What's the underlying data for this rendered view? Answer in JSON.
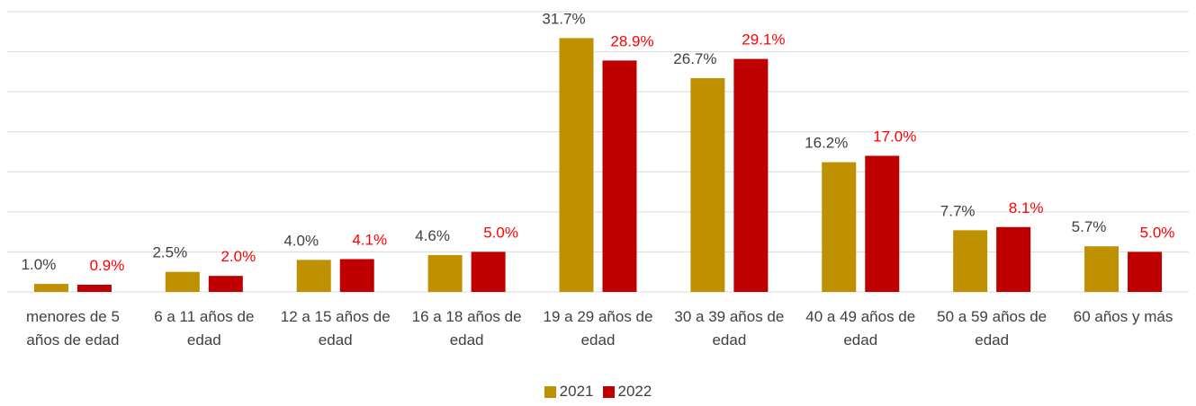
{
  "chart_data": {
    "type": "bar",
    "categories": [
      "menores de 5 años de edad",
      "6 a 11 años de edad",
      "12 a 15 años de edad",
      "16 a 18 años de edad",
      "19 a 29 años de edad",
      "30 a 39 años de edad",
      "40 a 49 años de edad",
      "50 a 59 años de edad",
      "60 años y más"
    ],
    "series": [
      {
        "name": "2021",
        "color": "#bf9000",
        "label_color": "#404040",
        "values": [
          1.0,
          2.5,
          4.0,
          4.6,
          31.7,
          26.7,
          16.2,
          7.7,
          5.7
        ],
        "value_labels": [
          "1.0%",
          "2.5%",
          "4.0%",
          "4.6%",
          "31.7%",
          "26.7%",
          "16.2%",
          "7.7%",
          "5.7%"
        ]
      },
      {
        "name": "2022",
        "color": "#c00000",
        "label_color": "#ff0000",
        "values": [
          0.9,
          2.0,
          4.1,
          5.0,
          28.9,
          29.1,
          17.0,
          8.1,
          5.0
        ],
        "value_labels": [
          "0.9%",
          "2.0%",
          "4.1%",
          "5.0%",
          "28.9%",
          "29.1%",
          "17.0%",
          "8.1%",
          "5.0%"
        ]
      }
    ],
    "ylim": [
      0,
      35
    ],
    "yticks": [
      0,
      5,
      10,
      15,
      20,
      25,
      30,
      35
    ],
    "grid": true,
    "legend": "bottom"
  }
}
